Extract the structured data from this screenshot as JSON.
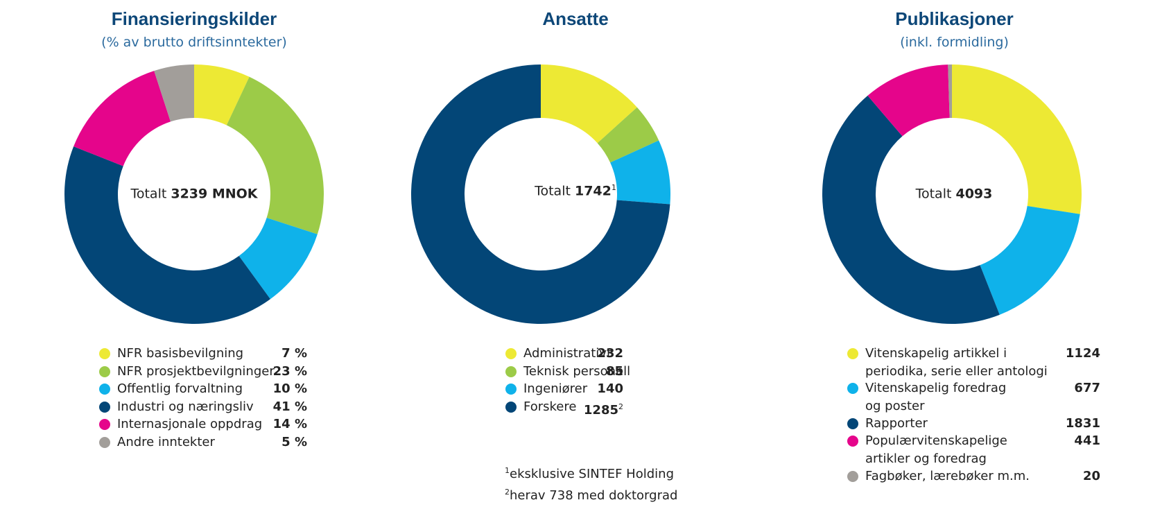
{
  "chart_data": [
    {
      "type": "pie",
      "title": "Finansieringskilder",
      "subtitle": "(% av brutto driftsinntekter)",
      "center": {
        "prefix": "Totalt",
        "value": "3239 MNOK",
        "sup": ""
      },
      "categories": [
        "NFR basisbevilgning",
        "NFR prosjektbevilgninger",
        "Offentlig forvaltning",
        "Industri og næringsliv",
        "Internasjonale oppdrag",
        "Andre inntekter"
      ],
      "values": [
        7,
        23,
        10,
        41,
        14,
        5
      ],
      "value_labels": [
        "7 %",
        "23 %",
        "10 %",
        "41 %",
        "14 %",
        "5 %"
      ],
      "value_sups": [
        "",
        "",
        "",
        "",
        "",
        ""
      ],
      "colors": [
        "#ede934",
        "#9ccb48",
        "#0fb2ea",
        "#034677",
        "#e5058b",
        "#a29e9a"
      ],
      "legend_placement": "bottom"
    },
    {
      "type": "pie",
      "title": "Ansatte",
      "subtitle": "",
      "center": {
        "prefix": "Totalt",
        "value": "1742",
        "sup": "1"
      },
      "categories": [
        "Administrativt",
        "Teknisk personell",
        "Ingeniører",
        "Forskere"
      ],
      "values": [
        232,
        85,
        140,
        1285
      ],
      "value_labels": [
        "232",
        "85",
        "140",
        "1285"
      ],
      "value_sups": [
        "",
        "",
        "",
        "2"
      ],
      "colors": [
        "#ede934",
        "#9ccb48",
        "#0fb2ea",
        "#034677"
      ],
      "legend_placement": "bottom",
      "footnotes": [
        {
          "mark": "1",
          "text": "eksklusive SINTEF Holding"
        },
        {
          "mark": "2",
          "text": "herav 738 med doktorgrad"
        }
      ]
    },
    {
      "type": "pie",
      "title": "Publikasjoner",
      "subtitle": "(inkl. formidling)",
      "center": {
        "prefix": "Totalt",
        "value": "4093",
        "sup": ""
      },
      "categories": [
        "Vitenskapelig artikkel i periodika, serie eller antologi",
        "Vitenskapelig foredrag og poster",
        "Rapporter",
        "Populærvitenskapelige artikler og foredrag",
        "Fagbøker, lærebøker m.m."
      ],
      "category_lines": [
        [
          "Vitenskapelig artikkel i",
          "periodika, serie eller antologi"
        ],
        [
          "Vitenskapelig foredrag",
          "og poster"
        ],
        [
          "Rapporter"
        ],
        [
          "Populærvitenskapelige",
          "artikler og foredrag"
        ],
        [
          "Fagbøker, lærebøker m.m."
        ]
      ],
      "values": [
        1124,
        677,
        1831,
        441,
        20
      ],
      "value_labels": [
        "1124",
        "677",
        "1831",
        "441",
        "20"
      ],
      "value_sups": [
        "",
        "",
        "",
        "",
        ""
      ],
      "colors": [
        "#ede934",
        "#0fb2ea",
        "#034677",
        "#e5058b",
        "#a29e9a"
      ],
      "legend_placement": "bottom"
    }
  ]
}
